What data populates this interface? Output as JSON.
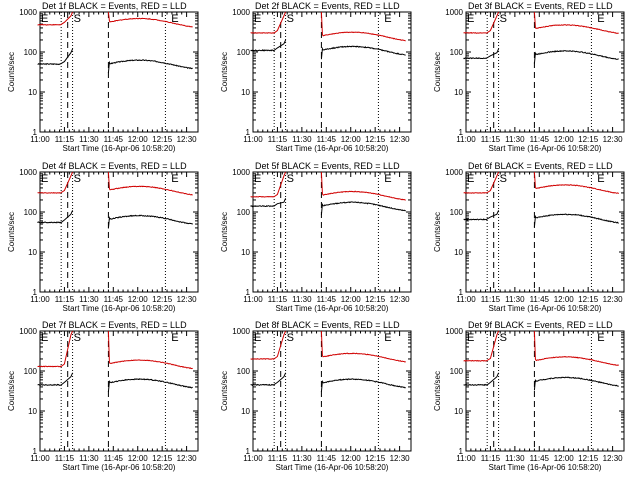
{
  "chart_data": [
    {
      "type": "line",
      "title": "Det 1f BLACK = Events, RED = LLD",
      "xlabel": "Start Time (16-Apr-06 10:58:20)",
      "ylabel": "Counts/sec",
      "x_ticks": [
        "11:00",
        "11:15",
        "11:30",
        "11:45",
        "12:00",
        "12:15",
        "12:30"
      ],
      "y_ticks": [
        "1",
        "10",
        "100",
        "1000"
      ],
      "ylim": [
        1,
        1000
      ],
      "scale": "log",
      "markers": [
        {
          "label": "E",
          "time": "11:00"
        },
        {
          "label": "S",
          "time": "11:20"
        },
        {
          "label": "E",
          "time": "12:20"
        }
      ],
      "lines": {
        "dotted": [
          "11:13",
          "11:20",
          "12:17"
        ],
        "dashed": [
          "11:17",
          "11:42"
        ]
      },
      "series": [
        {
          "name": "Events",
          "color": "#000000",
          "pre_level": 50,
          "rise_to": 120,
          "post_level": 50
        },
        {
          "name": "LLD",
          "color": "#d00000",
          "pre_level": 480,
          "rise_to": 1000,
          "post_level": 550
        }
      ]
    },
    {
      "type": "line",
      "title": "Det 2f BLACK = Events, RED = LLD",
      "xlabel": "Start Time (16-Apr-06 10:58:20)",
      "ylabel": "Counts/sec",
      "x_ticks": [
        "11:00",
        "11:15",
        "11:30",
        "11:45",
        "12:00",
        "12:15",
        "12:30"
      ],
      "y_ticks": [
        "1",
        "10",
        "100",
        "1000"
      ],
      "ylim": [
        1,
        1000
      ],
      "scale": "log",
      "markers": [
        {
          "label": "E",
          "time": "11:00"
        },
        {
          "label": "S",
          "time": "11:20"
        },
        {
          "label": "E",
          "time": "12:20"
        }
      ],
      "lines": {
        "dotted": [
          "11:13",
          "11:20",
          "12:17"
        ],
        "dashed": [
          "11:17",
          "11:42"
        ]
      },
      "series": [
        {
          "name": "Events",
          "color": "#000000",
          "pre_level": 110,
          "rise_to": 200,
          "post_level": 110
        },
        {
          "name": "LLD",
          "color": "#d00000",
          "pre_level": 300,
          "rise_to": 1000,
          "post_level": 250
        }
      ]
    },
    {
      "type": "line",
      "title": "Det 3f BLACK = Events, RED = LLD",
      "xlabel": "Start Time (16-Apr-06 10:58:20)",
      "ylabel": "Counts/sec",
      "x_ticks": [
        "11:00",
        "11:15",
        "11:30",
        "11:45",
        "12:00",
        "12:15",
        "12:30"
      ],
      "y_ticks": [
        "1",
        "10",
        "100",
        "1000"
      ],
      "ylim": [
        1,
        1000
      ],
      "scale": "log",
      "markers": [
        {
          "label": "E",
          "time": "11:00"
        },
        {
          "label": "S",
          "time": "11:20"
        },
        {
          "label": "E",
          "time": "12:20"
        }
      ],
      "lines": {
        "dotted": [
          "11:13",
          "11:20",
          "12:17"
        ],
        "dashed": [
          "11:17",
          "11:42"
        ]
      },
      "series": [
        {
          "name": "Events",
          "color": "#000000",
          "pre_level": 70,
          "rise_to": 120,
          "post_level": 85
        },
        {
          "name": "LLD",
          "color": "#d00000",
          "pre_level": 300,
          "rise_to": 1000,
          "post_level": 380
        }
      ]
    },
    {
      "type": "line",
      "title": "Det 4f BLACK = Events, RED = LLD",
      "xlabel": "Start Time (16-Apr-06 10:58:20)",
      "ylabel": "Counts/sec",
      "x_ticks": [
        "11:00",
        "11:15",
        "11:30",
        "11:45",
        "12:00",
        "12:15",
        "12:30"
      ],
      "y_ticks": [
        "1",
        "10",
        "100",
        "1000"
      ],
      "ylim": [
        1,
        1000
      ],
      "scale": "log",
      "markers": [
        {
          "label": "E",
          "time": "11:00"
        },
        {
          "label": "S",
          "time": "11:20"
        },
        {
          "label": "E",
          "time": "12:20"
        }
      ],
      "lines": {
        "dotted": [
          "11:13",
          "11:20",
          "12:17"
        ],
        "dashed": [
          "11:17",
          "11:42"
        ]
      },
      "series": [
        {
          "name": "Events",
          "color": "#000000",
          "pre_level": 55,
          "rise_to": 110,
          "post_level": 65
        },
        {
          "name": "LLD",
          "color": "#d00000",
          "pre_level": 300,
          "rise_to": 1000,
          "post_level": 350
        }
      ]
    },
    {
      "type": "line",
      "title": "Det 5f BLACK = Events, RED = LLD",
      "xlabel": "Start Time (16-Apr-06 10:58:20)",
      "ylabel": "Counts/sec",
      "x_ticks": [
        "11:00",
        "11:15",
        "11:30",
        "11:45",
        "12:00",
        "12:15",
        "12:30"
      ],
      "y_ticks": [
        "1",
        "10",
        "100",
        "1000"
      ],
      "ylim": [
        1,
        1000
      ],
      "scale": "log",
      "markers": [
        {
          "label": "E",
          "time": "11:00"
        },
        {
          "label": "S",
          "time": "11:20"
        },
        {
          "label": "E",
          "time": "12:20"
        }
      ],
      "lines": {
        "dotted": [
          "11:13",
          "11:20",
          "12:17"
        ],
        "dashed": [
          "11:17",
          "11:42"
        ]
      },
      "series": [
        {
          "name": "Events",
          "color": "#000000",
          "pre_level": 140,
          "rise_to": 220,
          "post_level": 140
        },
        {
          "name": "LLD",
          "color": "#d00000",
          "pre_level": 240,
          "rise_to": 1000,
          "post_level": 260
        }
      ]
    },
    {
      "type": "line",
      "title": "Det 6f BLACK = Events, RED = LLD",
      "xlabel": "Start Time (16-Apr-06 10:58:20)",
      "ylabel": "Counts/sec",
      "x_ticks": [
        "11:00",
        "11:15",
        "11:30",
        "11:45",
        "12:00",
        "12:15",
        "12:30"
      ],
      "y_ticks": [
        "1",
        "10",
        "100",
        "1000"
      ],
      "ylim": [
        1,
        1000
      ],
      "scale": "log",
      "markers": [
        {
          "label": "E",
          "time": "11:00"
        },
        {
          "label": "S",
          "time": "11:20"
        },
        {
          "label": "E",
          "time": "12:20"
        }
      ],
      "lines": {
        "dotted": [
          "11:13",
          "11:20",
          "12:17"
        ],
        "dashed": [
          "11:17",
          "11:42"
        ]
      },
      "series": [
        {
          "name": "Events",
          "color": "#000000",
          "pre_level": 65,
          "rise_to": 110,
          "post_level": 70
        },
        {
          "name": "LLD",
          "color": "#d00000",
          "pre_level": 300,
          "rise_to": 1000,
          "post_level": 380
        }
      ]
    },
    {
      "type": "line",
      "title": "Det 7f BLACK = Events, RED = LLD",
      "xlabel": "Start Time (16-Apr-06 10:58:20)",
      "ylabel": "Counts/sec",
      "x_ticks": [
        "11:00",
        "11:15",
        "11:30",
        "11:45",
        "12:00",
        "12:15",
        "12:30"
      ],
      "y_ticks": [
        "1",
        "10",
        "100",
        "1000"
      ],
      "ylim": [
        1,
        1000
      ],
      "scale": "log",
      "markers": [
        {
          "label": "E",
          "time": "11:00"
        },
        {
          "label": "S",
          "time": "11:20"
        },
        {
          "label": "E",
          "time": "12:20"
        }
      ],
      "lines": {
        "dotted": [
          "11:13",
          "11:20",
          "12:17"
        ],
        "dashed": [
          "11:17",
          "11:42"
        ]
      },
      "series": [
        {
          "name": "Events",
          "color": "#000000",
          "pre_level": 45,
          "rise_to": 90,
          "post_level": 50
        },
        {
          "name": "LLD",
          "color": "#d00000",
          "pre_level": 130,
          "rise_to": 1000,
          "post_level": 150
        }
      ]
    },
    {
      "type": "line",
      "title": "Det 8f BLACK = Events, RED = LLD",
      "xlabel": "Start Time (16-Apr-06 10:58:20)",
      "ylabel": "Counts/sec",
      "x_ticks": [
        "11:00",
        "11:15",
        "11:30",
        "11:45",
        "12:00",
        "12:15",
        "12:30"
      ],
      "y_ticks": [
        "1",
        "10",
        "100",
        "1000"
      ],
      "ylim": [
        1,
        1000
      ],
      "scale": "log",
      "markers": [
        {
          "label": "E",
          "time": "11:00"
        },
        {
          "label": "S",
          "time": "11:20"
        },
        {
          "label": "E",
          "time": "12:20"
        }
      ],
      "lines": {
        "dotted": [
          "11:13",
          "11:20",
          "12:17"
        ],
        "dashed": [
          "11:17",
          "11:42"
        ]
      },
      "series": [
        {
          "name": "Events",
          "color": "#000000",
          "pre_level": 45,
          "rise_to": 90,
          "post_level": 50
        },
        {
          "name": "LLD",
          "color": "#d00000",
          "pre_level": 200,
          "rise_to": 1000,
          "post_level": 220
        }
      ]
    },
    {
      "type": "line",
      "title": "Det 9f BLACK = Events, RED = LLD",
      "xlabel": "Start Time (16-Apr-06 10:58:20)",
      "ylabel": "Counts/sec",
      "x_ticks": [
        "11:00",
        "11:15",
        "11:30",
        "11:45",
        "12:00",
        "12:15",
        "12:30"
      ],
      "y_ticks": [
        "1",
        "10",
        "100",
        "1000"
      ],
      "ylim": [
        1,
        1000
      ],
      "scale": "log",
      "markers": [
        {
          "label": "E",
          "time": "11:00"
        },
        {
          "label": "S",
          "time": "11:20"
        },
        {
          "label": "E",
          "time": "12:20"
        }
      ],
      "lines": {
        "dotted": [
          "11:13",
          "11:20",
          "12:17"
        ],
        "dashed": [
          "11:17",
          "11:42"
        ]
      },
      "series": [
        {
          "name": "Events",
          "color": "#000000",
          "pre_level": 45,
          "rise_to": 90,
          "post_level": 55
        },
        {
          "name": "LLD",
          "color": "#d00000",
          "pre_level": 180,
          "rise_to": 1000,
          "post_level": 180
        }
      ]
    }
  ]
}
